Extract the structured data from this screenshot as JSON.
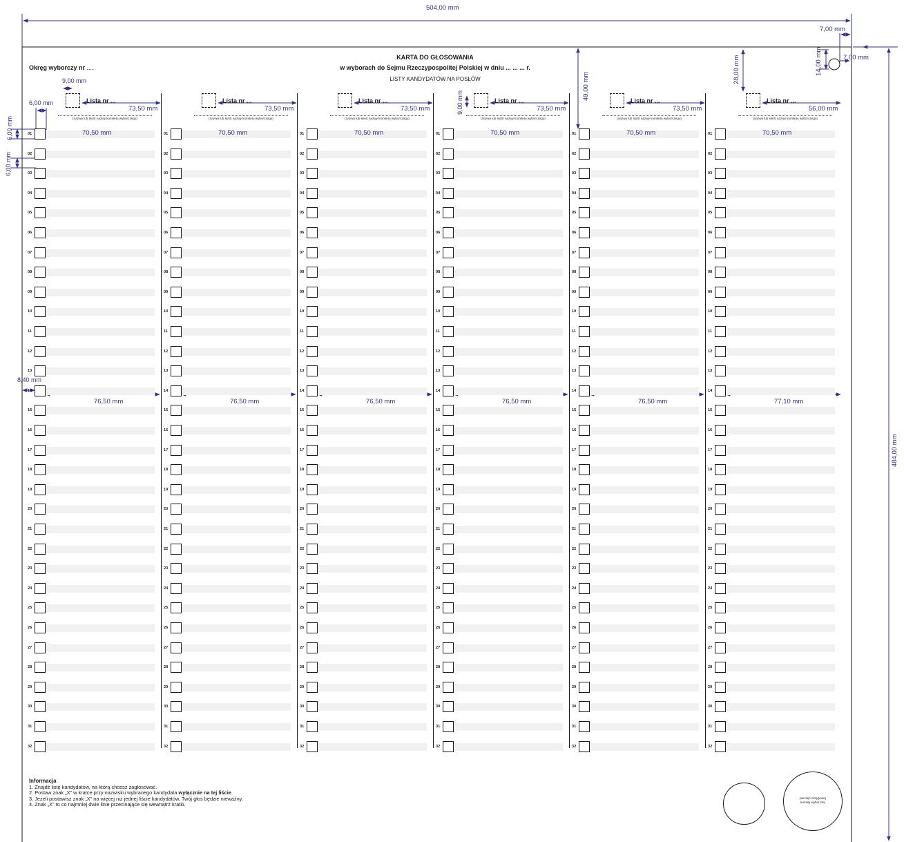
{
  "header": {
    "title": "KARTA DO GŁOSOWANIA",
    "subtitle": "w wyborach do Sejmu Rzeczypospolitej Polskiej w dniu ... ... ... r.",
    "section": "LISTY KANDYDATÓW NA POSŁÓW",
    "district_label": "Okręg wyborczy nr",
    "district_value": "...."
  },
  "columns": [
    {
      "list_label": "Lista nr ...",
      "committee_hint": "(nazwa lub skrót nazwy komitetu wyborczego)"
    },
    {
      "list_label": "Lista nr ...",
      "committee_hint": "(nazwa lub skrót nazwy komitetu wyborczego)"
    },
    {
      "list_label": "Lista nr ...",
      "committee_hint": "(nazwa lub skrót nazwy komitetu wyborczego)"
    },
    {
      "list_label": "Lista nr ...",
      "committee_hint": "(nazwa lub skrót nazwy komitetu wyborczego)"
    },
    {
      "list_label": "Lista nr ...",
      "committee_hint": "(nazwa lub skrót nazwy komitetu wyborczego)"
    },
    {
      "list_label": "Lista nr ...",
      "committee_hint": "(nazwa lub skrót nazwy komitetu wyborczego)"
    }
  ],
  "row_numbers": [
    "01",
    "02",
    "03",
    "04",
    "05",
    "06",
    "07",
    "08",
    "09",
    "10",
    "11",
    "12",
    "13",
    "14",
    "15",
    "16",
    "17",
    "18",
    "19",
    "20",
    "21",
    "22",
    "23",
    "24",
    "25",
    "26",
    "27",
    "28",
    "29",
    "30",
    "31",
    "32"
  ],
  "info": {
    "heading": "Informacja",
    "line1": "1. Znajdź listę kandydatów, na którą chcesz zagłosować.",
    "line2_a": "2. Postaw znak „X” w kratce przy nazwisku wybranego kandydata ",
    "line2_b": "wyłącznie na tej liście",
    "line2_c": ".",
    "line3": "3. Jeżeli postawisz znak „X” na więcej niż jednej liście kandydatów, Twój głos będzie nieważny.",
    "line4": "4. Znak „X” to co najmniej dwie linie przecinające się wewnątrz kratki."
  },
  "stamp": {
    "line1": "pieczęć okręgowej",
    "line2": "komisji wyborczej"
  },
  "dimensions": {
    "width": "504,00 mm",
    "height": "484,00 mm",
    "corner_offset": "7,00 mm",
    "corner_offset_side": "7,00 mm",
    "hole_height": "14,00 mm",
    "header_height": "49,00 mm",
    "hole_drop": "28,00 mm",
    "list_box": "9,00 mm",
    "list_box_v": "9,00 mm",
    "left_margin": "6,00 mm",
    "row_height": "6,00 mm",
    "row_gap": "6,00 mm",
    "column_width_header": "73,50 mm",
    "column_width_header_last": "56,00 mm",
    "row_line": "70,50 mm",
    "col_left": "8,40 mm",
    "column_width": "76,50 mm",
    "column_width_last": "77,10 mm"
  },
  "colors": {
    "dimension": "#2e3192",
    "ink": "#1a1a1a",
    "stripe": "#f1f1f1"
  }
}
